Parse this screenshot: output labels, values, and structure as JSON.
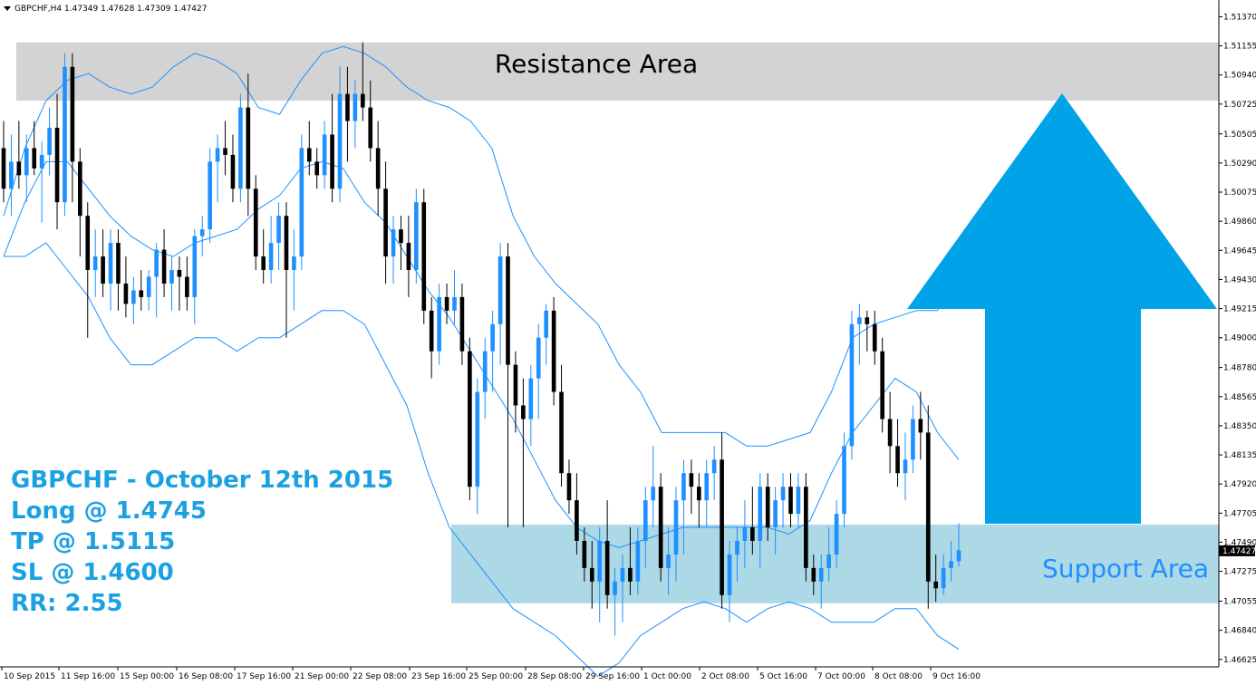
{
  "header": {
    "symbol": "GBPCHF,H4",
    "ohlc": "1.47349 1.47628 1.47309 1.47427"
  },
  "annotations": {
    "resistance_label": "Resistance Area",
    "support_label": "Support Area",
    "info_lines": [
      "GBPCHF - October 12th 2015",
      "Long @ 1.4745",
      "TP @ 1.5115",
      "SL @ 1.4600",
      "RR: 2.55"
    ],
    "current_price_label": "1.47427"
  },
  "colors": {
    "bull": "#1e90ff",
    "bear": "#000000",
    "band": "#1e90ff",
    "resistance_fill": "#d3d3d3",
    "support_fill": "#add8e6",
    "arrow": "#00a2e8",
    "info_text": "#1ba1e2"
  },
  "chart_data": {
    "type": "candlestick",
    "title": "",
    "xlabel": "",
    "ylabel": "",
    "ylim": [
      1.4657,
      1.5148
    ],
    "y_ticks": [
      "1.51370",
      "1.51155",
      "1.50940",
      "1.50725",
      "1.50505",
      "1.50290",
      "1.50075",
      "1.49860",
      "1.49645",
      "1.49430",
      "1.49215",
      "1.49000",
      "1.48780",
      "1.48565",
      "1.48350",
      "1.48135",
      "1.47920",
      "1.47705",
      "1.47490",
      "1.47275",
      "1.47055",
      "1.46840",
      "1.46625"
    ],
    "x_ticks": [
      "10 Sep 2015",
      "11 Sep 16:00",
      "15 Sep 00:00",
      "16 Sep 08:00",
      "17 Sep 16:00",
      "21 Sep 00:00",
      "22 Sep 08:00",
      "23 Sep 16:00",
      "25 Sep 00:00",
      "28 Sep 08:00",
      "29 Sep 16:00",
      "1 Oct 00:00",
      "2 Oct 08:00",
      "5 Oct 16:00",
      "7 Oct 00:00",
      "8 Oct 08:00",
      "9 Oct 16:00"
    ],
    "zones": {
      "resistance": [
        1.5075,
        1.5118
      ],
      "support": [
        1.4704,
        1.4762
      ]
    },
    "candles": [
      [
        1.504,
        1.506,
        1.5,
        1.501
      ],
      [
        1.501,
        1.505,
        1.499,
        1.503
      ],
      [
        1.503,
        1.506,
        1.501,
        1.502
      ],
      [
        1.502,
        1.505,
        1.5,
        1.504
      ],
      [
        1.504,
        1.506,
        1.502,
        1.5025
      ],
      [
        1.5025,
        1.5045,
        1.4985,
        1.5035
      ],
      [
        1.5035,
        1.507,
        1.502,
        1.5055
      ],
      [
        1.5055,
        1.508,
        1.498,
        1.5
      ],
      [
        1.5,
        1.511,
        1.499,
        1.51
      ],
      [
        1.51,
        1.511,
        1.5,
        1.503
      ],
      [
        1.503,
        1.504,
        1.496,
        1.499
      ],
      [
        1.499,
        1.5,
        1.49,
        1.495
      ],
      [
        1.495,
        1.498,
        1.493,
        1.496
      ],
      [
        1.496,
        1.498,
        1.493,
        1.494
      ],
      [
        1.494,
        1.498,
        1.492,
        1.497
      ],
      [
        1.497,
        1.498,
        1.492,
        1.494
      ],
      [
        1.494,
        1.496,
        1.4915,
        1.4925
      ],
      [
        1.4925,
        1.4945,
        1.491,
        1.4935
      ],
      [
        1.4935,
        1.495,
        1.492,
        1.493
      ],
      [
        1.493,
        1.495,
        1.492,
        1.4945
      ],
      [
        1.4945,
        1.497,
        1.4915,
        1.4965
      ],
      [
        1.4965,
        1.498,
        1.493,
        1.494
      ],
      [
        1.494,
        1.496,
        1.492,
        1.495
      ],
      [
        1.495,
        1.496,
        1.492,
        1.4945
      ],
      [
        1.4945,
        1.496,
        1.492,
        1.493
      ],
      [
        1.493,
        1.498,
        1.491,
        1.4975
      ],
      [
        1.4975,
        1.499,
        1.496,
        1.498
      ],
      [
        1.498,
        1.504,
        1.497,
        1.503
      ],
      [
        1.503,
        1.505,
        1.5,
        1.504
      ],
      [
        1.504,
        1.506,
        1.502,
        1.5035
      ],
      [
        1.5035,
        1.505,
        1.5,
        1.501
      ],
      [
        1.501,
        1.508,
        1.5,
        1.507
      ],
      [
        1.507,
        1.5095,
        1.499,
        1.501
      ],
      [
        1.501,
        1.502,
        1.495,
        1.496
      ],
      [
        1.496,
        1.498,
        1.494,
        1.495
      ],
      [
        1.495,
        1.499,
        1.494,
        1.497
      ],
      [
        1.497,
        1.5,
        1.495,
        1.499
      ],
      [
        1.499,
        1.5,
        1.49,
        1.495
      ],
      [
        1.495,
        1.498,
        1.492,
        1.496
      ],
      [
        1.496,
        1.505,
        1.495,
        1.504
      ],
      [
        1.504,
        1.506,
        1.502,
        1.503
      ],
      [
        1.503,
        1.504,
        1.501,
        1.502
      ],
      [
        1.502,
        1.506,
        1.501,
        1.505
      ],
      [
        1.505,
        1.508,
        1.5,
        1.501
      ],
      [
        1.501,
        1.51,
        1.5,
        1.508
      ],
      [
        1.508,
        1.51,
        1.503,
        1.506
      ],
      [
        1.506,
        1.509,
        1.504,
        1.508
      ],
      [
        1.508,
        1.5118,
        1.506,
        1.507
      ],
      [
        1.507,
        1.509,
        1.503,
        1.504
      ],
      [
        1.504,
        1.506,
        1.499,
        1.501
      ],
      [
        1.501,
        1.503,
        1.494,
        1.496
      ],
      [
        1.496,
        1.499,
        1.494,
        1.498
      ],
      [
        1.498,
        1.499,
        1.495,
        1.497
      ],
      [
        1.497,
        1.499,
        1.493,
        1.495
      ],
      [
        1.495,
        1.501,
        1.494,
        1.5
      ],
      [
        1.5,
        1.501,
        1.491,
        1.492
      ],
      [
        1.492,
        1.493,
        1.487,
        1.489
      ],
      [
        1.489,
        1.494,
        1.488,
        1.493
      ],
      [
        1.493,
        1.494,
        1.491,
        1.492
      ],
      [
        1.492,
        1.495,
        1.491,
        1.493
      ],
      [
        1.493,
        1.494,
        1.488,
        1.489
      ],
      [
        1.489,
        1.49,
        1.478,
        1.479
      ],
      [
        1.479,
        1.487,
        1.477,
        1.486
      ],
      [
        1.486,
        1.49,
        1.484,
        1.489
      ],
      [
        1.489,
        1.492,
        1.486,
        1.491
      ],
      [
        1.491,
        1.497,
        1.488,
        1.496
      ],
      [
        1.496,
        1.497,
        1.476,
        1.488
      ],
      [
        1.488,
        1.489,
        1.483,
        1.485
      ],
      [
        1.485,
        1.487,
        1.476,
        1.484
      ],
      [
        1.484,
        1.488,
        1.482,
        1.487
      ],
      [
        1.487,
        1.491,
        1.484,
        1.49
      ],
      [
        1.49,
        1.4925,
        1.488,
        1.492
      ],
      [
        1.492,
        1.493,
        1.485,
        1.486
      ],
      [
        1.486,
        1.488,
        1.479,
        1.48
      ],
      [
        1.48,
        1.481,
        1.477,
        1.478
      ],
      [
        1.478,
        1.48,
        1.474,
        1.475
      ],
      [
        1.475,
        1.476,
        1.472,
        1.473
      ],
      [
        1.473,
        1.475,
        1.47,
        1.472
      ],
      [
        1.472,
        1.476,
        1.469,
        1.475
      ],
      [
        1.475,
        1.478,
        1.47,
        1.471
      ],
      [
        1.471,
        1.473,
        1.468,
        1.472
      ],
      [
        1.472,
        1.474,
        1.469,
        1.473
      ],
      [
        1.473,
        1.476,
        1.471,
        1.472
      ],
      [
        1.472,
        1.476,
        1.471,
        1.475
      ],
      [
        1.475,
        1.479,
        1.473,
        1.478
      ],
      [
        1.478,
        1.482,
        1.476,
        1.479
      ],
      [
        1.479,
        1.48,
        1.472,
        1.473
      ],
      [
        1.473,
        1.476,
        1.471,
        1.474
      ],
      [
        1.474,
        1.479,
        1.472,
        1.478
      ],
      [
        1.478,
        1.481,
        1.474,
        1.48
      ],
      [
        1.48,
        1.481,
        1.477,
        1.479
      ],
      [
        1.479,
        1.48,
        1.476,
        1.478
      ],
      [
        1.478,
        1.481,
        1.476,
        1.48
      ],
      [
        1.48,
        1.482,
        1.478,
        1.481
      ],
      [
        1.481,
        1.483,
        1.47,
        1.471
      ],
      [
        1.471,
        1.475,
        1.469,
        1.474
      ],
      [
        1.474,
        1.476,
        1.472,
        1.475
      ],
      [
        1.475,
        1.478,
        1.473,
        1.476
      ],
      [
        1.476,
        1.479,
        1.474,
        1.475
      ],
      [
        1.475,
        1.48,
        1.473,
        1.479
      ],
      [
        1.479,
        1.48,
        1.475,
        1.476
      ],
      [
        1.476,
        1.479,
        1.474,
        1.478
      ],
      [
        1.478,
        1.48,
        1.476,
        1.479
      ],
      [
        1.479,
        1.48,
        1.476,
        1.477
      ],
      [
        1.477,
        1.48,
        1.476,
        1.479
      ],
      [
        1.479,
        1.48,
        1.472,
        1.473
      ],
      [
        1.473,
        1.474,
        1.471,
        1.472
      ],
      [
        1.472,
        1.474,
        1.47,
        1.473
      ],
      [
        1.473,
        1.476,
        1.472,
        1.474
      ],
      [
        1.474,
        1.478,
        1.473,
        1.477
      ],
      [
        1.477,
        1.483,
        1.476,
        1.482
      ],
      [
        1.482,
        1.492,
        1.481,
        1.491
      ],
      [
        1.491,
        1.4925,
        1.488,
        1.4915
      ],
      [
        1.4915,
        1.492,
        1.489,
        1.491
      ],
      [
        1.491,
        1.492,
        1.488,
        1.489
      ],
      [
        1.489,
        1.49,
        1.483,
        1.484
      ],
      [
        1.484,
        1.486,
        1.48,
        1.482
      ],
      [
        1.482,
        1.484,
        1.479,
        1.48
      ],
      [
        1.48,
        1.483,
        1.478,
        1.481
      ],
      [
        1.481,
        1.485,
        1.48,
        1.484
      ],
      [
        1.484,
        1.486,
        1.481,
        1.483
      ],
      [
        1.483,
        1.485,
        1.47,
        1.472
      ],
      [
        1.472,
        1.474,
        1.4705,
        1.4715
      ],
      [
        1.4715,
        1.474,
        1.471,
        1.473
      ],
      [
        1.473,
        1.475,
        1.472,
        1.4735
      ],
      [
        1.4735,
        1.4763,
        1.4731,
        1.4743
      ]
    ],
    "bands": {
      "upper": [
        1.499,
        1.504,
        1.5075,
        1.509,
        1.5095,
        1.5085,
        1.508,
        1.5085,
        1.51,
        1.511,
        1.5105,
        1.5095,
        1.507,
        1.5065,
        1.509,
        1.511,
        1.5115,
        1.511,
        1.51,
        1.5085,
        1.5075,
        1.507,
        1.506,
        1.504,
        1.499,
        1.496,
        1.494,
        1.4925,
        1.491,
        1.488,
        1.486,
        1.483,
        1.483,
        1.483,
        1.483,
        1.482,
        1.482,
        1.4825,
        1.483,
        1.486,
        1.49,
        1.491,
        1.4915,
        1.492,
        1.492,
        1.495
      ],
      "middle": [
        1.496,
        1.5,
        1.503,
        1.503,
        1.501,
        1.499,
        1.4975,
        1.4965,
        1.496,
        1.497,
        1.4975,
        1.498,
        1.4995,
        1.5005,
        1.5025,
        1.503,
        1.5025,
        1.5,
        1.4985,
        1.496,
        1.4935,
        1.4915,
        1.489,
        1.4865,
        1.484,
        1.481,
        1.478,
        1.476,
        1.475,
        1.4745,
        1.475,
        1.4755,
        1.476,
        1.476,
        1.476,
        1.476,
        1.476,
        1.4755,
        1.4765,
        1.48,
        1.483,
        1.485,
        1.487,
        1.486,
        1.483,
        1.481
      ],
      "lower": [
        1.496,
        1.496,
        1.497,
        1.495,
        1.493,
        1.49,
        1.488,
        1.488,
        1.489,
        1.49,
        1.49,
        1.489,
        1.49,
        1.49,
        1.491,
        1.492,
        1.492,
        1.491,
        1.488,
        1.485,
        1.48,
        1.476,
        1.474,
        1.472,
        1.47,
        1.469,
        1.468,
        1.4665,
        1.465,
        1.466,
        1.468,
        1.469,
        1.47,
        1.4705,
        1.47,
        1.469,
        1.47,
        1.4705,
        1.47,
        1.469,
        1.469,
        1.469,
        1.47,
        1.47,
        1.468,
        1.467
      ]
    }
  }
}
